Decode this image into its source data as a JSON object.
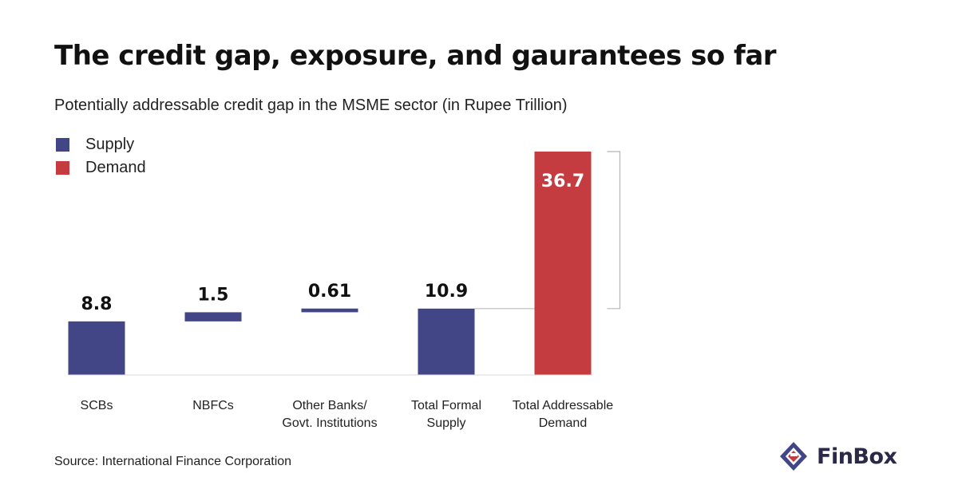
{
  "title": "The credit gap, exposure, and gaurantees so far",
  "subtitle": "Potentially addressable credit gap in the MSME sector (in Rupee Trillion)",
  "legend": [
    {
      "label": "Supply",
      "color": "#424686"
    },
    {
      "label": "Demand",
      "color": "#c43c3f"
    }
  ],
  "source": "Source: International Finance Corporation",
  "logo": {
    "text": "FinBox",
    "icon": "finbox-logo-icon"
  },
  "colors": {
    "supply": "#424686",
    "demand": "#c43c3f",
    "text": "#111111"
  },
  "chart_data": {
    "type": "bar",
    "subtype": "waterfall",
    "title": "The credit gap, exposure, and gaurantees so far",
    "subtitle": "Potentially addressable credit gap in the MSME sector (in Rupee Trillion)",
    "unit": "Rupee Trillion",
    "categories": [
      [
        "SCBs"
      ],
      [
        "NBFCs"
      ],
      [
        "Other Banks/",
        "Govt. Institutions"
      ],
      [
        "Total Formal",
        "Supply"
      ],
      [
        "Total Addressable",
        "Demand"
      ]
    ],
    "bars": [
      {
        "value": 8.8,
        "base": 0,
        "label": "8.8",
        "series": "Supply"
      },
      {
        "value": 1.5,
        "base": 8.8,
        "label": "1.5",
        "series": "Supply"
      },
      {
        "value": 0.61,
        "base": 10.3,
        "label": "0.61",
        "series": "Supply"
      },
      {
        "value": 10.9,
        "base": 0,
        "label": "10.9",
        "series": "Supply"
      },
      {
        "value": 36.7,
        "base": 0,
        "label": "36.7",
        "series": "Demand"
      }
    ],
    "gap_bracket": {
      "from": 10.9,
      "to": 36.7
    },
    "legend_position": "top-left",
    "grid": false
  }
}
